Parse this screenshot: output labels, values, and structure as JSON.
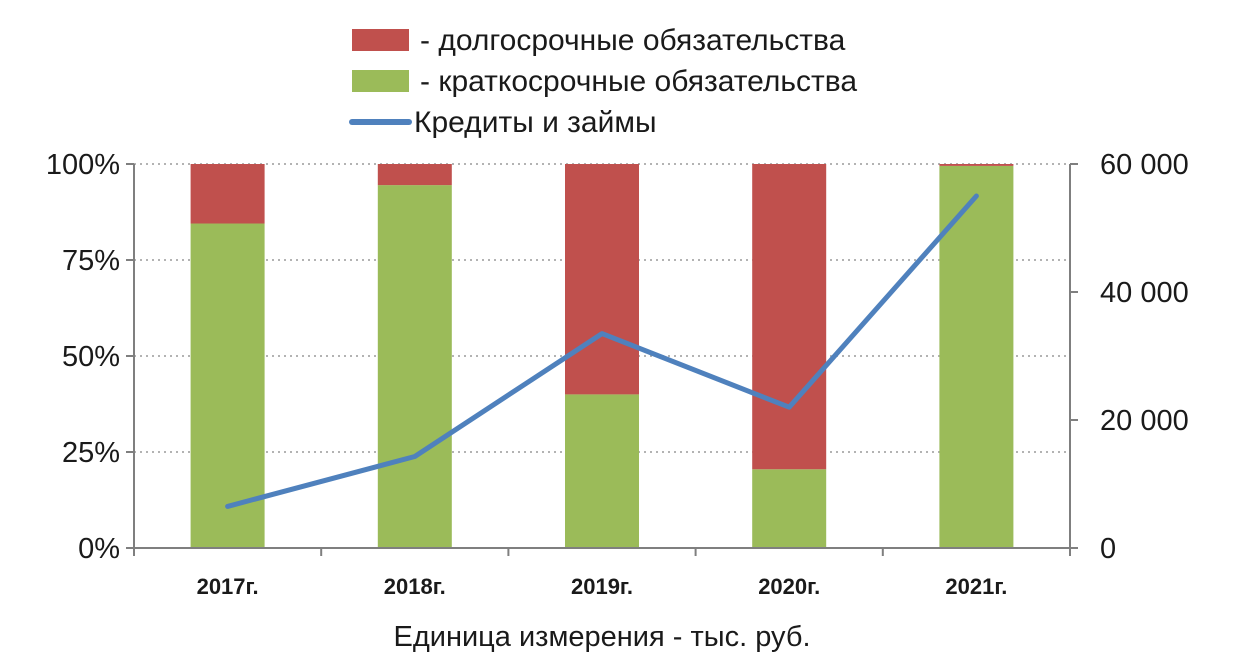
{
  "chart_data": {
    "type": "bar",
    "stacked": true,
    "percent_stacked": true,
    "categories": [
      "2017г.",
      "2018г.",
      "2019г.",
      "2020г.",
      "2021г."
    ],
    "series": [
      {
        "name": "- краткосрочные обязательства",
        "kind": "bar",
        "axis": "left",
        "color": "#9BBB59",
        "values": [
          84.5,
          94.5,
          40,
          20.5,
          99.5
        ]
      },
      {
        "name": "- долгосрочные обязательства",
        "kind": "bar",
        "axis": "left",
        "color": "#C0504D",
        "values": [
          15.5,
          5.5,
          60,
          79.5,
          0.5
        ]
      },
      {
        "name": "Кредиты и займы",
        "kind": "line",
        "axis": "right",
        "color": "#4F81BD",
        "values": [
          6500,
          14300,
          33500,
          22000,
          55000
        ]
      }
    ],
    "legend_order": [
      1,
      0,
      2
    ],
    "y_left": {
      "min": 0,
      "max": 100,
      "ticks": [
        0,
        25,
        50,
        75,
        100
      ],
      "tick_labels": [
        "0%",
        "25%",
        "50%",
        "75%",
        "100%"
      ]
    },
    "y_right": {
      "min": 0,
      "max": 60000,
      "ticks": [
        0,
        20000,
        40000,
        60000
      ],
      "tick_labels": [
        "0",
        "20 000",
        "40 000",
        "60 000"
      ]
    },
    "xlabel": "Единица измерения - тыс. руб.",
    "title": "",
    "grid": "horizontal-dotted",
    "legend_position": "top"
  }
}
